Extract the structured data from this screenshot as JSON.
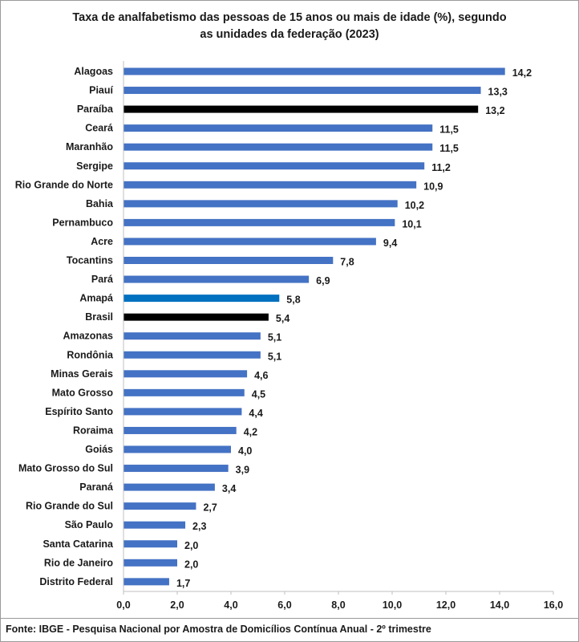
{
  "chart_data": {
    "type": "bar",
    "orientation": "horizontal",
    "title": "Taxa de analfabetismo das pessoas de 15 anos ou mais de idade (%), segundo as unidades da federação (2023)",
    "title_lines": [
      "Taxa de analfabetismo das pessoas de 15 anos ou mais de idade (%), segundo",
      "as unidades da federação (2023)"
    ],
    "categories": [
      "Alagoas",
      "Piauí",
      "Paraíba",
      "Ceará",
      "Maranhão",
      "Sergipe",
      "Rio Grande do Norte",
      "Bahia",
      "Pernambuco",
      "Acre",
      "Tocantins",
      "Pará",
      "Amapá",
      "Brasil",
      "Amazonas",
      "Rondônia",
      "Minas Gerais",
      "Mato Grosso",
      "Espírito Santo",
      "Roraima",
      "Goiás",
      "Mato Grosso do Sul",
      "Paraná",
      "Rio Grande do Sul",
      "São Paulo",
      "Santa Catarina",
      "Rio de Janeiro",
      "Distrito Federal"
    ],
    "values": [
      14.2,
      13.3,
      13.2,
      11.5,
      11.5,
      11.2,
      10.9,
      10.2,
      10.1,
      9.4,
      7.8,
      6.9,
      5.8,
      5.4,
      5.1,
      5.1,
      4.6,
      4.5,
      4.4,
      4.2,
      4.0,
      3.9,
      3.4,
      2.7,
      2.3,
      2.0,
      2.0,
      1.7
    ],
    "value_labels": [
      "14,2",
      "13,3",
      "13,2",
      "11,5",
      "11,5",
      "11,2",
      "10,9",
      "10,2",
      "10,1",
      "9,4",
      "7,8",
      "6,9",
      "5,8",
      "5,4",
      "5,1",
      "5,1",
      "4,6",
      "4,5",
      "4,4",
      "4,2",
      "4,0",
      "3,9",
      "3,4",
      "2,7",
      "2,3",
      "2,0",
      "2,0",
      "1,7"
    ],
    "bar_colors": [
      "#4472c4",
      "#4472c4",
      "#000000",
      "#4472c4",
      "#4472c4",
      "#4472c4",
      "#4472c4",
      "#4472c4",
      "#4472c4",
      "#4472c4",
      "#4472c4",
      "#4472c4",
      "#0070c0",
      "#000000",
      "#4472c4",
      "#4472c4",
      "#4472c4",
      "#4472c4",
      "#4472c4",
      "#4472c4",
      "#4472c4",
      "#4472c4",
      "#4472c4",
      "#4472c4",
      "#4472c4",
      "#4472c4",
      "#4472c4",
      "#4472c4"
    ],
    "xlim": [
      0,
      16
    ],
    "x_ticks": [
      0,
      2,
      4,
      6,
      8,
      10,
      12,
      14,
      16
    ],
    "x_tick_labels": [
      "0,0",
      "2,0",
      "4,0",
      "6,0",
      "8,0",
      "10,0",
      "12,0",
      "14,0",
      "16,0"
    ],
    "xlabel": "",
    "ylabel": "",
    "grid": false,
    "legend": "none"
  },
  "source": "Fonte: IBGE - Pesquisa Nacional por Amostra de Domicílios Contínua Anual - 2º trimestre"
}
